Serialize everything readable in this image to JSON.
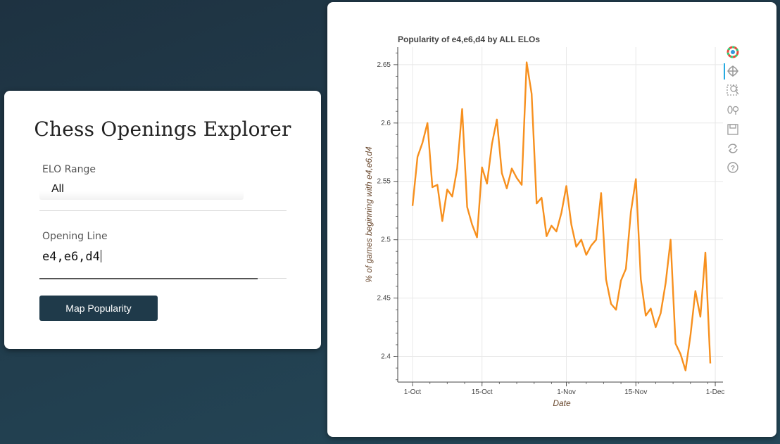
{
  "app": {
    "title": "Chess Openings Explorer",
    "elo_label": "ELO Range",
    "elo_value": "All",
    "opening_label": "Opening Line",
    "opening_value": "e4,e6,d4",
    "button_label": "Map Popularity"
  },
  "toolbar": {
    "icons": [
      "bokeh-logo-icon",
      "pan-icon",
      "box-zoom-icon",
      "wheel-zoom-icon",
      "save-icon",
      "reset-icon",
      "help-icon"
    ]
  },
  "colors": {
    "line": "#f7901e",
    "button": "#1f3a4a"
  },
  "chart_data": {
    "type": "line",
    "title": "Popularity of e4,e6,d4 by ALL ELOs",
    "xlabel": "Date",
    "ylabel": "% of games beginning with e4,e6,d4",
    "ylim": [
      2.378,
      2.665
    ],
    "yticks": [
      2.4,
      2.45,
      2.5,
      2.55,
      2.6,
      2.65
    ],
    "ytick_labels": [
      "2.4",
      "2.45",
      "2.5",
      "2.55",
      "2.6",
      "2.65"
    ],
    "xticks": [
      "1-Oct",
      "15-Oct",
      "1-Nov",
      "15-Nov",
      "1-Dec"
    ],
    "grid": true,
    "x": [
      "2023-10-01",
      "2023-10-02",
      "2023-10-03",
      "2023-10-04",
      "2023-10-05",
      "2023-10-06",
      "2023-10-07",
      "2023-10-08",
      "2023-10-09",
      "2023-10-10",
      "2023-10-11",
      "2023-10-12",
      "2023-10-13",
      "2023-10-14",
      "2023-10-15",
      "2023-10-16",
      "2023-10-17",
      "2023-10-18",
      "2023-10-19",
      "2023-10-20",
      "2023-10-21",
      "2023-10-22",
      "2023-10-23",
      "2023-10-24",
      "2023-10-25",
      "2023-10-26",
      "2023-10-27",
      "2023-10-28",
      "2023-10-29",
      "2023-10-30",
      "2023-10-31",
      "2023-11-01",
      "2023-11-02",
      "2023-11-03",
      "2023-11-04",
      "2023-11-05",
      "2023-11-06",
      "2023-11-07",
      "2023-11-08",
      "2023-11-09",
      "2023-11-10",
      "2023-11-11",
      "2023-11-12",
      "2023-11-13",
      "2023-11-14",
      "2023-11-15",
      "2023-11-16",
      "2023-11-17",
      "2023-11-18",
      "2023-11-19",
      "2023-11-20",
      "2023-11-21",
      "2023-11-22",
      "2023-11-23",
      "2023-11-24",
      "2023-11-25",
      "2023-11-26",
      "2023-11-27",
      "2023-11-28",
      "2023-11-29",
      "2023-11-30"
    ],
    "values": [
      2.529,
      2.571,
      2.583,
      2.6,
      2.545,
      2.547,
      2.516,
      2.543,
      2.537,
      2.561,
      2.612,
      2.528,
      2.513,
      2.502,
      2.562,
      2.548,
      2.582,
      2.603,
      2.557,
      2.544,
      2.561,
      2.553,
      2.547,
      2.652,
      2.625,
      2.531,
      2.536,
      2.503,
      2.512,
      2.507,
      2.523,
      2.546,
      2.513,
      2.494,
      2.5,
      2.487,
      2.495,
      2.5,
      2.54,
      2.466,
      2.445,
      2.44,
      2.465,
      2.475,
      2.524,
      2.552,
      2.466,
      2.435,
      2.441,
      2.425,
      2.437,
      2.463,
      2.5,
      2.411,
      2.402,
      2.388,
      2.418,
      2.456,
      2.434,
      2.489,
      2.394
    ],
    "series": [
      {
        "color": "#f7901e"
      }
    ]
  }
}
